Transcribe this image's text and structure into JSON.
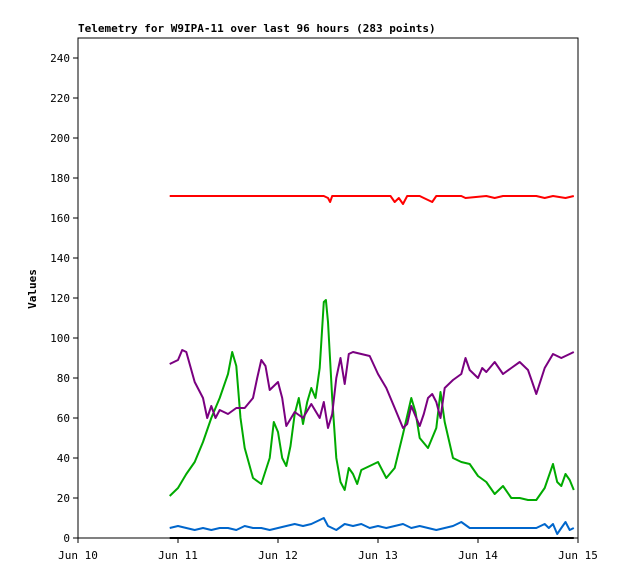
{
  "chart_data": {
    "type": "line",
    "title": "Telemetry for W9IPA-11 over last 96 hours (283 points)",
    "xlabel": "",
    "ylabel": "Values",
    "ylim": [
      0,
      250
    ],
    "yticks": [
      0,
      20,
      40,
      60,
      80,
      100,
      120,
      140,
      160,
      180,
      200,
      220,
      240
    ],
    "xlim": [
      "2024-06-10T00:00",
      "2024-06-15T00:00"
    ],
    "xticks": [
      {
        "t": "2024-06-10T00:00",
        "label": "Jun 10"
      },
      {
        "t": "2024-06-11T00:00",
        "label": "Jun 11"
      },
      {
        "t": "2024-06-12T00:00",
        "label": "Jun 12"
      },
      {
        "t": "2024-06-13T00:00",
        "label": "Jun 13"
      },
      {
        "t": "2024-06-14T00:00",
        "label": "Jun 14"
      },
      {
        "t": "2024-06-15T00:00",
        "label": "Jun 15"
      }
    ],
    "grid": false,
    "legend": "none",
    "series": [
      {
        "color": "#ff0000",
        "points": [
          [
            "2024-06-10T22:00",
            171
          ],
          [
            "2024-06-11T06:00",
            171
          ],
          [
            "2024-06-11T14:00",
            171
          ],
          [
            "2024-06-11T22:00",
            171
          ],
          [
            "2024-06-12T06:00",
            171
          ],
          [
            "2024-06-12T11:00",
            171
          ],
          [
            "2024-06-12T12:00",
            170
          ],
          [
            "2024-06-12T12:30",
            168
          ],
          [
            "2024-06-12T13:00",
            171
          ],
          [
            "2024-06-12T20:00",
            171
          ],
          [
            "2024-06-13T03:00",
            171
          ],
          [
            "2024-06-13T04:00",
            168
          ],
          [
            "2024-06-13T05:00",
            170
          ],
          [
            "2024-06-13T06:00",
            167
          ],
          [
            "2024-06-13T07:00",
            171
          ],
          [
            "2024-06-13T10:00",
            171
          ],
          [
            "2024-06-13T11:00",
            170
          ],
          [
            "2024-06-13T13:00",
            168
          ],
          [
            "2024-06-13T14:00",
            171
          ],
          [
            "2024-06-13T20:00",
            171
          ],
          [
            "2024-06-13T21:00",
            170
          ],
          [
            "2024-06-14T02:00",
            171
          ],
          [
            "2024-06-14T04:00",
            170
          ],
          [
            "2024-06-14T06:00",
            171
          ],
          [
            "2024-06-14T14:00",
            171
          ],
          [
            "2024-06-14T16:00",
            170
          ],
          [
            "2024-06-14T18:00",
            171
          ],
          [
            "2024-06-14T21:00",
            170
          ],
          [
            "2024-06-14T23:00",
            171
          ]
        ]
      },
      {
        "color": "#00aa00",
        "points": [
          [
            "2024-06-10T22:00",
            21
          ],
          [
            "2024-06-11T00:00",
            25
          ],
          [
            "2024-06-11T02:00",
            32
          ],
          [
            "2024-06-11T04:00",
            38
          ],
          [
            "2024-06-11T06:00",
            48
          ],
          [
            "2024-06-11T08:00",
            60
          ],
          [
            "2024-06-11T10:00",
            70
          ],
          [
            "2024-06-11T12:00",
            82
          ],
          [
            "2024-06-11T13:00",
            93
          ],
          [
            "2024-06-11T14:00",
            86
          ],
          [
            "2024-06-11T15:00",
            60
          ],
          [
            "2024-06-11T16:00",
            45
          ],
          [
            "2024-06-11T18:00",
            30
          ],
          [
            "2024-06-11T20:00",
            27
          ],
          [
            "2024-06-11T22:00",
            40
          ],
          [
            "2024-06-11T23:00",
            58
          ],
          [
            "2024-06-12T00:00",
            53
          ],
          [
            "2024-06-12T01:00",
            40
          ],
          [
            "2024-06-12T02:00",
            36
          ],
          [
            "2024-06-12T03:00",
            46
          ],
          [
            "2024-06-12T04:00",
            62
          ],
          [
            "2024-06-12T05:00",
            70
          ],
          [
            "2024-06-12T06:00",
            57
          ],
          [
            "2024-06-12T07:00",
            68
          ],
          [
            "2024-06-12T08:00",
            75
          ],
          [
            "2024-06-12T09:00",
            70
          ],
          [
            "2024-06-12T10:00",
            85
          ],
          [
            "2024-06-12T11:00",
            118
          ],
          [
            "2024-06-12T11:30",
            119
          ],
          [
            "2024-06-12T12:00",
            108
          ],
          [
            "2024-06-12T13:00",
            70
          ],
          [
            "2024-06-12T14:00",
            40
          ],
          [
            "2024-06-12T15:00",
            28
          ],
          [
            "2024-06-12T16:00",
            24
          ],
          [
            "2024-06-12T17:00",
            35
          ],
          [
            "2024-06-12T18:00",
            32
          ],
          [
            "2024-06-12T19:00",
            27
          ],
          [
            "2024-06-12T20:00",
            34
          ],
          [
            "2024-06-12T22:00",
            36
          ],
          [
            "2024-06-13T00:00",
            38
          ],
          [
            "2024-06-13T02:00",
            30
          ],
          [
            "2024-06-13T04:00",
            35
          ],
          [
            "2024-06-13T06:00",
            52
          ],
          [
            "2024-06-13T08:00",
            70
          ],
          [
            "2024-06-13T09:00",
            63
          ],
          [
            "2024-06-13T10:00",
            50
          ],
          [
            "2024-06-13T12:00",
            45
          ],
          [
            "2024-06-13T14:00",
            55
          ],
          [
            "2024-06-13T15:00",
            73
          ],
          [
            "2024-06-13T16:00",
            58
          ],
          [
            "2024-06-13T18:00",
            40
          ],
          [
            "2024-06-13T20:00",
            38
          ],
          [
            "2024-06-13T22:00",
            37
          ],
          [
            "2024-06-14T00:00",
            31
          ],
          [
            "2024-06-14T02:00",
            28
          ],
          [
            "2024-06-14T04:00",
            22
          ],
          [
            "2024-06-14T06:00",
            26
          ],
          [
            "2024-06-14T08:00",
            20
          ],
          [
            "2024-06-14T10:00",
            20
          ],
          [
            "2024-06-14T12:00",
            19
          ],
          [
            "2024-06-14T14:00",
            19
          ],
          [
            "2024-06-14T16:00",
            25
          ],
          [
            "2024-06-14T18:00",
            37
          ],
          [
            "2024-06-14T19:00",
            28
          ],
          [
            "2024-06-14T20:00",
            26
          ],
          [
            "2024-06-14T21:00",
            32
          ],
          [
            "2024-06-14T22:00",
            29
          ],
          [
            "2024-06-14T23:00",
            24
          ]
        ]
      },
      {
        "color": "#7a0080",
        "points": [
          [
            "2024-06-10T22:00",
            87
          ],
          [
            "2024-06-11T00:00",
            89
          ],
          [
            "2024-06-11T01:00",
            94
          ],
          [
            "2024-06-11T02:00",
            93
          ],
          [
            "2024-06-11T04:00",
            78
          ],
          [
            "2024-06-11T06:00",
            70
          ],
          [
            "2024-06-11T07:00",
            60
          ],
          [
            "2024-06-11T08:00",
            66
          ],
          [
            "2024-06-11T09:00",
            60
          ],
          [
            "2024-06-11T10:00",
            64
          ],
          [
            "2024-06-11T12:00",
            62
          ],
          [
            "2024-06-11T14:00",
            65
          ],
          [
            "2024-06-11T16:00",
            65
          ],
          [
            "2024-06-11T18:00",
            70
          ],
          [
            "2024-06-11T19:00",
            80
          ],
          [
            "2024-06-11T20:00",
            89
          ],
          [
            "2024-06-11T21:00",
            86
          ],
          [
            "2024-06-11T22:00",
            74
          ],
          [
            "2024-06-12T00:00",
            78
          ],
          [
            "2024-06-12T01:00",
            70
          ],
          [
            "2024-06-12T02:00",
            56
          ],
          [
            "2024-06-12T04:00",
            63
          ],
          [
            "2024-06-12T06:00",
            60
          ],
          [
            "2024-06-12T08:00",
            67
          ],
          [
            "2024-06-12T10:00",
            60
          ],
          [
            "2024-06-12T11:00",
            68
          ],
          [
            "2024-06-12T12:00",
            55
          ],
          [
            "2024-06-12T13:00",
            62
          ],
          [
            "2024-06-12T14:00",
            80
          ],
          [
            "2024-06-12T15:00",
            90
          ],
          [
            "2024-06-12T16:00",
            77
          ],
          [
            "2024-06-12T17:00",
            92
          ],
          [
            "2024-06-12T18:00",
            93
          ],
          [
            "2024-06-12T20:00",
            92
          ],
          [
            "2024-06-12T22:00",
            91
          ],
          [
            "2024-06-13T00:00",
            82
          ],
          [
            "2024-06-13T02:00",
            75
          ],
          [
            "2024-06-13T04:00",
            65
          ],
          [
            "2024-06-13T06:00",
            55
          ],
          [
            "2024-06-13T07:00",
            57
          ],
          [
            "2024-06-13T08:00",
            66
          ],
          [
            "2024-06-13T10:00",
            56
          ],
          [
            "2024-06-13T11:00",
            62
          ],
          [
            "2024-06-13T12:00",
            70
          ],
          [
            "2024-06-13T13:00",
            72
          ],
          [
            "2024-06-13T14:00",
            68
          ],
          [
            "2024-06-13T15:00",
            60
          ],
          [
            "2024-06-13T16:00",
            75
          ],
          [
            "2024-06-13T18:00",
            79
          ],
          [
            "2024-06-13T20:00",
            82
          ],
          [
            "2024-06-13T21:00",
            90
          ],
          [
            "2024-06-13T22:00",
            84
          ],
          [
            "2024-06-14T00:00",
            80
          ],
          [
            "2024-06-14T01:00",
            85
          ],
          [
            "2024-06-14T02:00",
            83
          ],
          [
            "2024-06-14T04:00",
            88
          ],
          [
            "2024-06-14T06:00",
            82
          ],
          [
            "2024-06-14T08:00",
            85
          ],
          [
            "2024-06-14T10:00",
            88
          ],
          [
            "2024-06-14T12:00",
            84
          ],
          [
            "2024-06-14T13:00",
            78
          ],
          [
            "2024-06-14T14:00",
            72
          ],
          [
            "2024-06-14T16:00",
            85
          ],
          [
            "2024-06-14T18:00",
            92
          ],
          [
            "2024-06-14T20:00",
            90
          ],
          [
            "2024-06-14T22:00",
            92
          ],
          [
            "2024-06-14T23:00",
            93
          ]
        ]
      },
      {
        "color": "#0066cc",
        "points": [
          [
            "2024-06-10T22:00",
            5
          ],
          [
            "2024-06-11T00:00",
            6
          ],
          [
            "2024-06-11T02:00",
            5
          ],
          [
            "2024-06-11T04:00",
            4
          ],
          [
            "2024-06-11T06:00",
            5
          ],
          [
            "2024-06-11T08:00",
            4
          ],
          [
            "2024-06-11T10:00",
            5
          ],
          [
            "2024-06-11T12:00",
            5
          ],
          [
            "2024-06-11T14:00",
            4
          ],
          [
            "2024-06-11T16:00",
            6
          ],
          [
            "2024-06-11T18:00",
            5
          ],
          [
            "2024-06-11T20:00",
            5
          ],
          [
            "2024-06-11T22:00",
            4
          ],
          [
            "2024-06-12T00:00",
            5
          ],
          [
            "2024-06-12T02:00",
            6
          ],
          [
            "2024-06-12T04:00",
            7
          ],
          [
            "2024-06-12T06:00",
            6
          ],
          [
            "2024-06-12T08:00",
            7
          ],
          [
            "2024-06-12T10:00",
            9
          ],
          [
            "2024-06-12T11:00",
            10
          ],
          [
            "2024-06-12T12:00",
            6
          ],
          [
            "2024-06-12T14:00",
            4
          ],
          [
            "2024-06-12T16:00",
            7
          ],
          [
            "2024-06-12T18:00",
            6
          ],
          [
            "2024-06-12T20:00",
            7
          ],
          [
            "2024-06-12T22:00",
            5
          ],
          [
            "2024-06-13T00:00",
            6
          ],
          [
            "2024-06-13T02:00",
            5
          ],
          [
            "2024-06-13T04:00",
            6
          ],
          [
            "2024-06-13T06:00",
            7
          ],
          [
            "2024-06-13T08:00",
            5
          ],
          [
            "2024-06-13T10:00",
            6
          ],
          [
            "2024-06-13T12:00",
            5
          ],
          [
            "2024-06-13T14:00",
            4
          ],
          [
            "2024-06-13T16:00",
            5
          ],
          [
            "2024-06-13T18:00",
            6
          ],
          [
            "2024-06-13T20:00",
            8
          ],
          [
            "2024-06-13T22:00",
            5
          ],
          [
            "2024-06-14T00:00",
            5
          ],
          [
            "2024-06-14T02:00",
            5
          ],
          [
            "2024-06-14T06:00",
            5
          ],
          [
            "2024-06-14T10:00",
            5
          ],
          [
            "2024-06-14T14:00",
            5
          ],
          [
            "2024-06-14T16:00",
            7
          ],
          [
            "2024-06-14T17:00",
            5
          ],
          [
            "2024-06-14T18:00",
            7
          ],
          [
            "2024-06-14T19:00",
            2
          ],
          [
            "2024-06-14T20:00",
            5
          ],
          [
            "2024-06-14T21:00",
            8
          ],
          [
            "2024-06-14T22:00",
            4
          ],
          [
            "2024-06-14T23:00",
            5
          ]
        ]
      },
      {
        "color": "#000000",
        "points": [
          [
            "2024-06-10T22:00",
            0
          ],
          [
            "2024-06-14T23:00",
            0
          ]
        ]
      }
    ]
  }
}
